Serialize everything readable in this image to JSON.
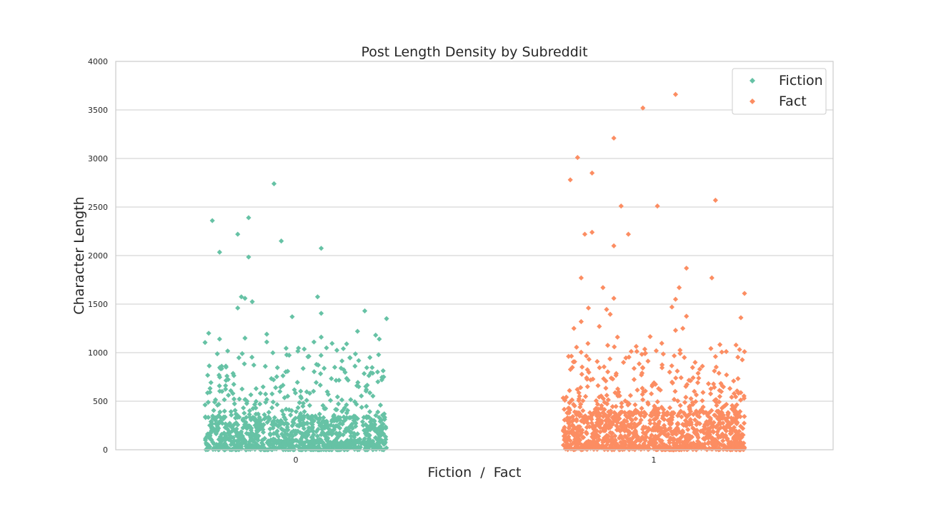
{
  "chart_data": {
    "type": "scatter",
    "title": "Post Length Density by Subreddit",
    "xlabel": "Fiction  /  Fact",
    "ylabel": "Character Length",
    "categories": [
      "0",
      "1"
    ],
    "ylim": [
      0,
      4000
    ],
    "yticks": [
      0,
      500,
      1000,
      1500,
      2000,
      2500,
      3000,
      3500,
      4000
    ],
    "jitter": 0.25,
    "grid": "horizontal",
    "legend_position": "top-right",
    "series": [
      {
        "name": "Fiction",
        "category": "0",
        "color": "#66c2a5",
        "marker": "diamond",
        "outliers": [
          {
            "dx": -0.06,
            "y": 2740
          },
          {
            "dx": -0.23,
            "y": 2360
          },
          {
            "dx": -0.13,
            "y": 2390
          },
          {
            "dx": -0.16,
            "y": 2220
          },
          {
            "dx": -0.04,
            "y": 2150
          },
          {
            "dx": 0.07,
            "y": 2075
          },
          {
            "dx": -0.21,
            "y": 2035
          },
          {
            "dx": -0.13,
            "y": 1985
          },
          {
            "dx": -0.15,
            "y": 1575
          },
          {
            "dx": -0.14,
            "y": 1560
          },
          {
            "dx": 0.06,
            "y": 1575
          },
          {
            "dx": -0.12,
            "y": 1525
          },
          {
            "dx": -0.16,
            "y": 1460
          },
          {
            "dx": 0.19,
            "y": 1430
          },
          {
            "dx": 0.07,
            "y": 1405
          },
          {
            "dx": -0.01,
            "y": 1370
          },
          {
            "dx": 0.25,
            "y": 1350
          },
          {
            "dx": -0.24,
            "y": 1200
          },
          {
            "dx": -0.08,
            "y": 1190
          },
          {
            "dx": 0.17,
            "y": 1220
          },
          {
            "dx": 0.07,
            "y": 1160
          },
          {
            "dx": 0.23,
            "y": 1140
          },
          {
            "dx": -0.21,
            "y": 1140
          },
          {
            "dx": -0.14,
            "y": 1150
          },
          {
            "dx": -0.08,
            "y": 1110
          },
          {
            "dx": 0.05,
            "y": 1110
          },
          {
            "dx": 0.1,
            "y": 1095
          },
          {
            "dx": -0.25,
            "y": 1105
          },
          {
            "dx": 0.14,
            "y": 1090
          },
          {
            "dx": 0.22,
            "y": 1180
          }
        ],
        "dense_band": {
          "count": 900,
          "ymax": 330
        },
        "mid_band": {
          "count": 260,
          "ymin": 330,
          "ymax": 1050
        }
      },
      {
        "name": "Fact",
        "category": "1",
        "color": "#fc8d62",
        "marker": "diamond",
        "outliers": [
          {
            "dx": 0.06,
            "y": 3660
          },
          {
            "dx": -0.03,
            "y": 3520
          },
          {
            "dx": -0.11,
            "y": 3210
          },
          {
            "dx": -0.21,
            "y": 3010
          },
          {
            "dx": -0.17,
            "y": 2850
          },
          {
            "dx": -0.23,
            "y": 2780
          },
          {
            "dx": 0.17,
            "y": 2570
          },
          {
            "dx": 0.01,
            "y": 2510
          },
          {
            "dx": -0.09,
            "y": 2510
          },
          {
            "dx": -0.07,
            "y": 2220
          },
          {
            "dx": -0.17,
            "y": 2240
          },
          {
            "dx": -0.19,
            "y": 2220
          },
          {
            "dx": -0.11,
            "y": 2100
          },
          {
            "dx": 0.09,
            "y": 1870
          },
          {
            "dx": 0.16,
            "y": 1770
          },
          {
            "dx": -0.2,
            "y": 1770
          },
          {
            "dx": -0.14,
            "y": 1670
          },
          {
            "dx": 0.07,
            "y": 1670
          },
          {
            "dx": 0.25,
            "y": 1610
          },
          {
            "dx": -0.11,
            "y": 1560
          },
          {
            "dx": 0.06,
            "y": 1550
          },
          {
            "dx": 0.05,
            "y": 1470
          },
          {
            "dx": -0.18,
            "y": 1460
          },
          {
            "dx": -0.13,
            "y": 1445
          },
          {
            "dx": -0.12,
            "y": 1395
          },
          {
            "dx": 0.09,
            "y": 1375
          },
          {
            "dx": 0.24,
            "y": 1360
          },
          {
            "dx": -0.2,
            "y": 1320
          },
          {
            "dx": -0.15,
            "y": 1270
          },
          {
            "dx": -0.22,
            "y": 1250
          },
          {
            "dx": 0.08,
            "y": 1250
          },
          {
            "dx": 0.06,
            "y": 1230
          },
          {
            "dx": -0.01,
            "y": 1165
          },
          {
            "dx": -0.1,
            "y": 1160
          },
          {
            "dx": 0.25,
            "y": 1010
          },
          {
            "dx": 0.17,
            "y": 960
          }
        ],
        "dense_band": {
          "count": 950,
          "ymax": 380
        },
        "mid_band": {
          "count": 300,
          "ymin": 380,
          "ymax": 1100
        }
      }
    ]
  }
}
